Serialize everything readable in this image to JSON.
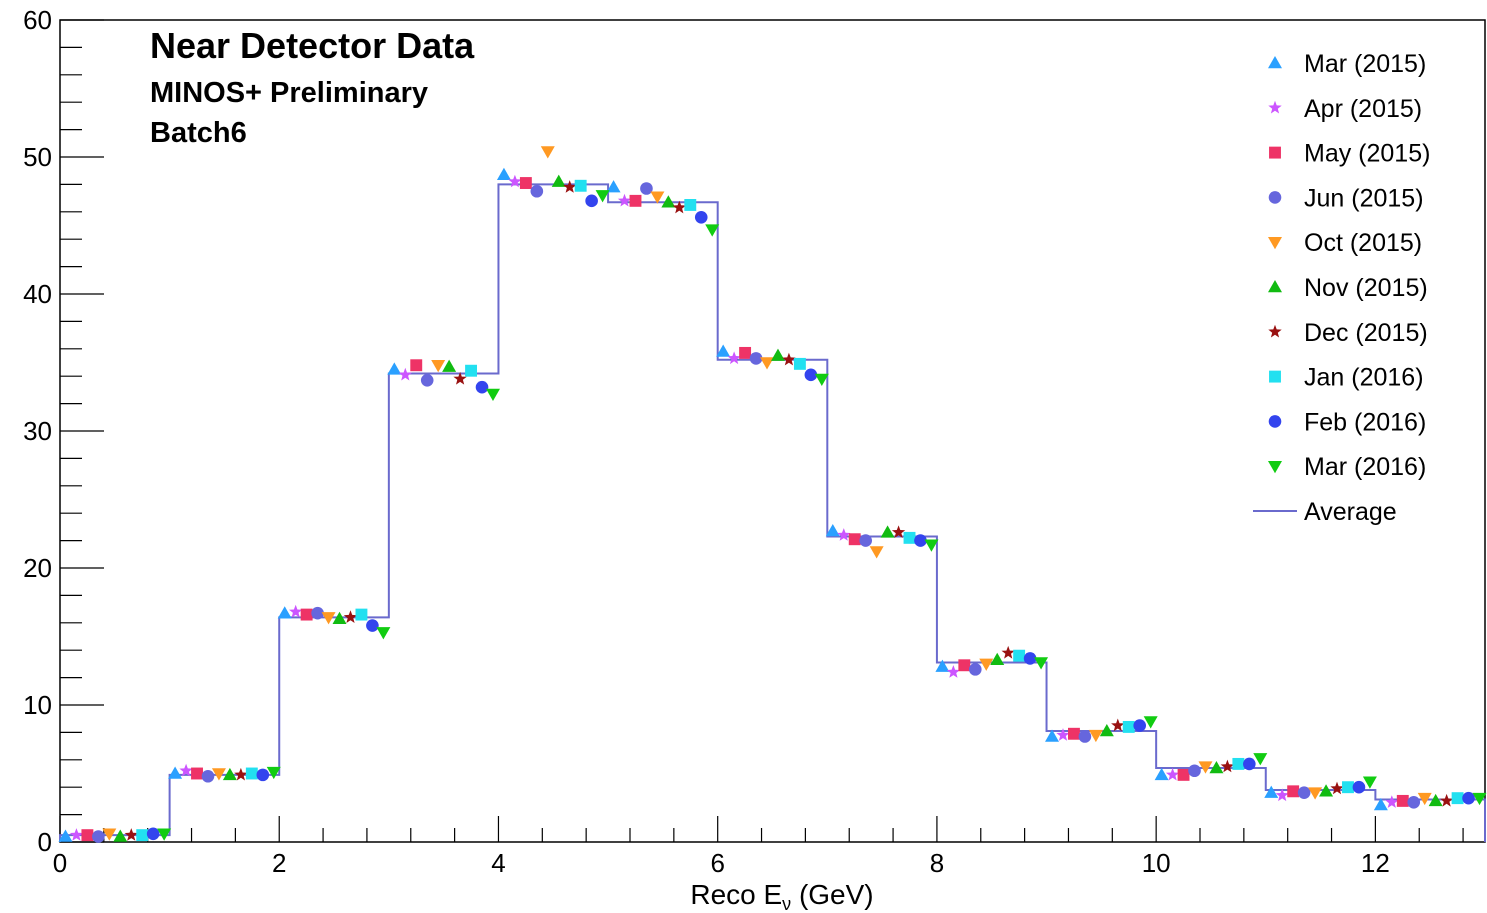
{
  "chart_data": {
    "type": "scatter",
    "title_lines": [
      {
        "text": "Near Detector Data",
        "color": "#7a7a7a"
      },
      {
        "text": "MINOS+ Preliminary",
        "color": "#ff1a1a"
      },
      {
        "text": "Batch6",
        "color": "#1a1aee"
      }
    ],
    "xlabel_main": "Reco E",
    "xlabel_sub": "ν",
    "xlabel_unit": " (GeV)",
    "ylabel": "",
    "xlim": [
      0,
      13
    ],
    "ylim": [
      0,
      60
    ],
    "x_ticks": [
      "0",
      "2",
      "4",
      "6",
      "8",
      "10",
      "12"
    ],
    "y_ticks": [
      "0",
      "10",
      "20",
      "30",
      "40",
      "50",
      "60"
    ],
    "legend_position": "top-right",
    "bin_edges": [
      0,
      1,
      2,
      3,
      4,
      5,
      6,
      7,
      8,
      9,
      10,
      11,
      12,
      13
    ],
    "average": {
      "name": "Average",
      "color": "#6a6acd",
      "values": [
        0.5,
        4.9,
        16.4,
        34.2,
        48.0,
        46.7,
        35.2,
        22.3,
        13.1,
        8.1,
        5.4,
        3.8,
        3.1
      ]
    },
    "series": [
      {
        "name": "Mar (2015)",
        "color": "#2aa0ff",
        "marker": "triangle-up",
        "values": [
          0.4,
          5.0,
          16.7,
          34.5,
          48.7,
          47.8,
          35.8,
          22.7,
          12.8,
          7.7,
          4.9,
          3.6,
          2.7
        ]
      },
      {
        "name": "Apr (2015)",
        "color": "#cc55ff",
        "marker": "star",
        "values": [
          0.5,
          5.2,
          16.8,
          34.1,
          48.2,
          46.8,
          35.3,
          22.4,
          12.4,
          7.8,
          4.9,
          3.4,
          2.9
        ]
      },
      {
        "name": "May (2015)",
        "color": "#ee3366",
        "marker": "square",
        "values": [
          0.5,
          5.0,
          16.6,
          34.8,
          48.1,
          46.8,
          35.7,
          22.1,
          12.9,
          7.9,
          4.9,
          3.7,
          3.0
        ]
      },
      {
        "name": "Jun (2015)",
        "color": "#6666dd",
        "marker": "circle",
        "values": [
          0.4,
          4.8,
          16.7,
          33.7,
          47.5,
          47.7,
          35.3,
          22.0,
          12.6,
          7.7,
          5.2,
          3.6,
          2.9
        ]
      },
      {
        "name": "Oct (2015)",
        "color": "#ff9922",
        "marker": "triangle-down",
        "values": [
          0.6,
          5.0,
          16.4,
          34.8,
          50.4,
          47.1,
          35.0,
          21.2,
          13.0,
          7.8,
          5.5,
          3.6,
          3.2
        ]
      },
      {
        "name": "Nov (2015)",
        "color": "#11bb11",
        "marker": "triangle-up",
        "values": [
          0.4,
          4.9,
          16.3,
          34.7,
          48.2,
          46.7,
          35.5,
          22.6,
          13.3,
          8.1,
          5.4,
          3.7,
          3.0
        ]
      },
      {
        "name": "Dec (2015)",
        "color": "#991111",
        "marker": "star",
        "values": [
          0.5,
          4.9,
          16.4,
          33.8,
          47.8,
          46.3,
          35.2,
          22.6,
          13.8,
          8.5,
          5.5,
          3.9,
          3.0
        ]
      },
      {
        "name": "Jan (2016)",
        "color": "#22e0f0",
        "marker": "square",
        "values": [
          0.5,
          5.0,
          16.6,
          34.4,
          47.9,
          46.5,
          34.9,
          22.2,
          13.6,
          8.4,
          5.7,
          4.0,
          3.2
        ]
      },
      {
        "name": "Feb (2016)",
        "color": "#3344ee",
        "marker": "circle",
        "values": [
          0.6,
          4.9,
          15.8,
          33.2,
          46.8,
          45.6,
          34.1,
          22.0,
          13.4,
          8.5,
          5.7,
          4.0,
          3.2
        ]
      },
      {
        "name": "Mar (2016)",
        "color": "#11cc11",
        "marker": "triangle-down",
        "values": [
          0.6,
          5.1,
          15.3,
          32.7,
          47.2,
          44.7,
          33.8,
          21.7,
          13.1,
          8.8,
          6.1,
          4.4,
          3.2
        ]
      }
    ]
  }
}
